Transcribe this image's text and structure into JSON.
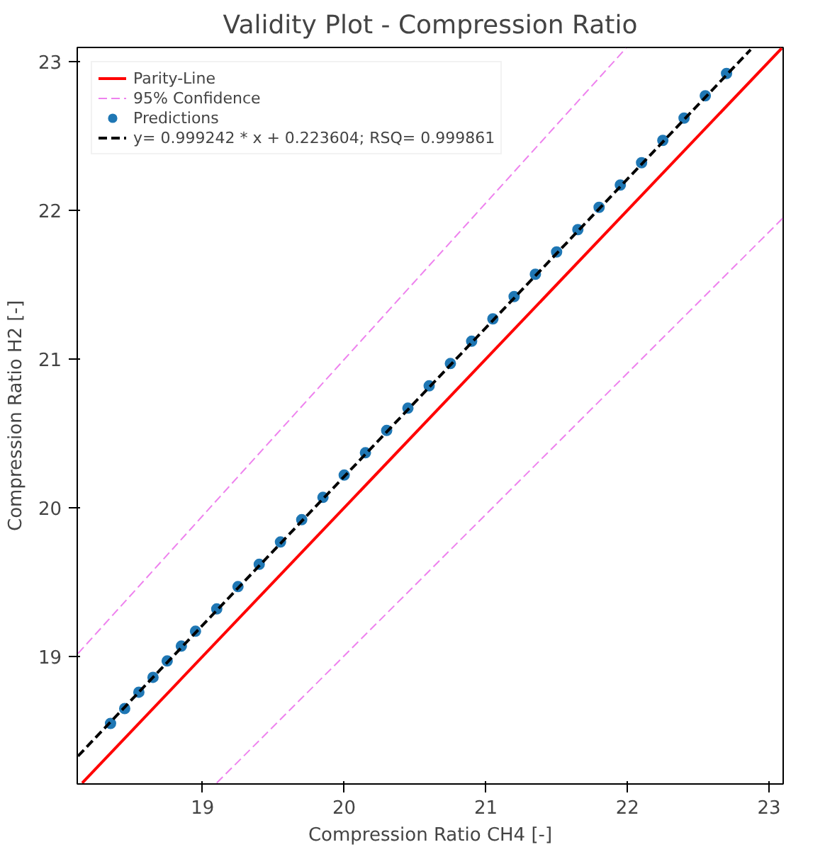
{
  "chart_data": {
    "type": "line",
    "title": "Validity Plot - Compression Ratio",
    "xlabel": "Compression Ratio CH4 [-]",
    "ylabel": "Compression Ratio H2 [-]",
    "xlim": [
      18.115,
      23.1
    ],
    "ylim": [
      18.143,
      23.095
    ],
    "xticks": [
      19,
      20,
      21,
      22,
      23
    ],
    "yticks": [
      19,
      20,
      21,
      22,
      23
    ],
    "grid": false,
    "legend": "top left",
    "series": [
      {
        "name": "Parity-Line",
        "color": "#ff0000",
        "line_style": "solid",
        "x": [
          18.15,
          23.09
        ],
        "values": [
          18.15,
          23.09
        ]
      },
      {
        "name": "95% Confidence",
        "color": "#ee82ee",
        "line_style": "dashed",
        "x": [
          18.12,
          21.99
        ],
        "values": [
          19.02,
          23.09
        ]
      },
      {
        "color": "#ee82ee",
        "line_style": "dashed",
        "x": [
          19.1,
          23.1
        ],
        "values": [
          18.15,
          21.95
        ]
      },
      {
        "name": "Predictions",
        "type": "scatter",
        "color": "#1f77b4",
        "marker": "circle",
        "x": [
          18.35,
          18.45,
          18.55,
          18.65,
          18.75,
          18.85,
          18.95,
          19.1,
          19.25,
          19.4,
          19.55,
          19.7,
          19.85,
          20.0,
          20.15,
          20.3,
          20.45,
          20.6,
          20.75,
          20.9,
          21.05,
          21.2,
          21.35,
          21.5,
          21.65,
          21.8,
          21.95,
          22.1,
          22.25,
          22.4,
          22.55,
          22.7
        ],
        "values": [
          18.55,
          18.65,
          18.76,
          18.86,
          18.97,
          19.07,
          19.17,
          19.32,
          19.47,
          19.62,
          19.77,
          19.92,
          20.07,
          20.22,
          20.37,
          20.52,
          20.67,
          20.82,
          20.97,
          21.12,
          21.27,
          21.42,
          21.57,
          21.72,
          21.87,
          22.02,
          22.17,
          22.32,
          22.47,
          22.62,
          22.77,
          22.92
        ]
      },
      {
        "name": "y= 0.999242 * x + 0.223604; RSQ= 0.999861",
        "color": "#000000",
        "line_style": "dashed",
        "x": [
          18.12,
          22.87
        ],
        "values": [
          18.33,
          23.08
        ]
      }
    ]
  }
}
